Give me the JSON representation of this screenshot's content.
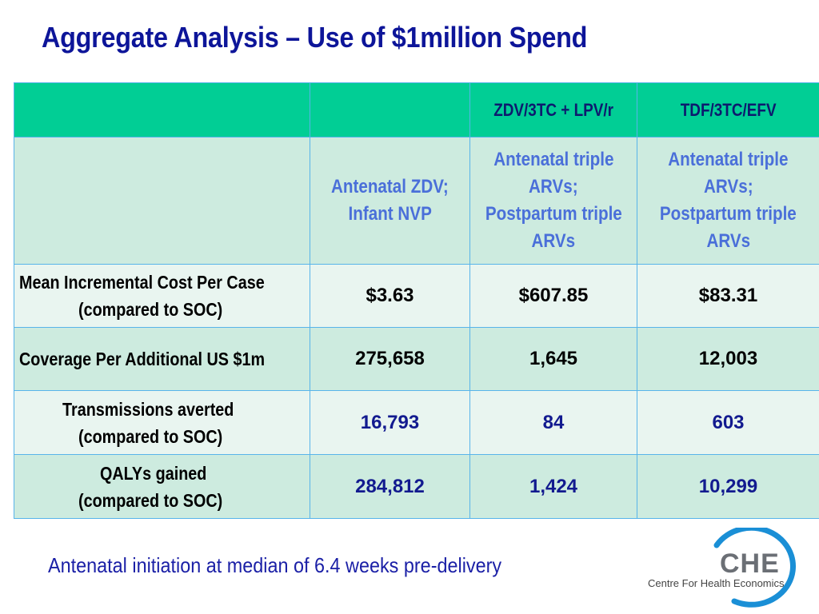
{
  "title": "Aggregate Analysis – Use of $1million Spend",
  "table": {
    "header_row": [
      "",
      "",
      "ZDV/3TC + LPV/r",
      "TDF/3TC/EFV"
    ],
    "subheader_row": [
      "",
      [
        "Antenatal ZDV;",
        "Infant NVP"
      ],
      [
        "Antenatal triple",
        "ARVs;",
        "Postpartum triple",
        "ARVs"
      ],
      [
        "Antenatal triple",
        "ARVs;",
        "Postpartum triple",
        "ARVs"
      ]
    ],
    "rows": [
      {
        "label": [
          "Mean Incremental Cost Per Case",
          "(compared to SOC)"
        ],
        "values": [
          "$3.63",
          "$607.85",
          "$83.31"
        ]
      },
      {
        "label": [
          "Coverage Per Additional US $1m"
        ],
        "values": [
          "275,658",
          "1,645",
          "12,003"
        ]
      },
      {
        "label": [
          "Transmissions averted",
          "(compared to SOC)"
        ],
        "values": [
          "16,793",
          "84",
          "603"
        ]
      },
      {
        "label": [
          "QALYs gained",
          "(compared to SOC)"
        ],
        "values": [
          "284,812",
          "1,424",
          "10,299"
        ]
      }
    ]
  },
  "footnote": "Antenatal initiation at median of 6.4 weeks pre-delivery",
  "logo": {
    "acronym": "CHE",
    "name": "Centre For Health Economics",
    "arc_color": "#1a8fd6"
  },
  "colors": {
    "title": "#0d1599",
    "header_bg": "#01ce95",
    "row_dark_bg": "#cdebdf",
    "row_light_bg": "#e9f5f0",
    "border": "#58b4ea",
    "subhead_text": "#4a6fd9",
    "value_blue": "#121a8f"
  }
}
